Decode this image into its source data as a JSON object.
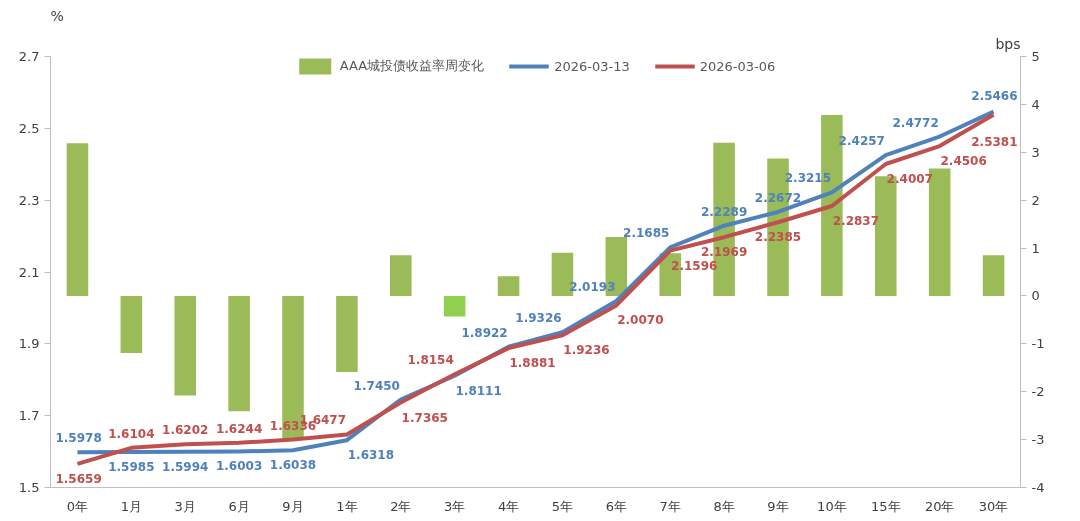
{
  "chart_data": {
    "type": "line",
    "ylabel": "%",
    "y2label": "bps",
    "categories": [
      "0年",
      "1月",
      "3月",
      "6月",
      "9月",
      "1年",
      "2年",
      "3年",
      "4年",
      "5年",
      "6年",
      "7年",
      "8年",
      "9年",
      "10年",
      "15年",
      "20年",
      "30年"
    ],
    "series": [
      {
        "name": "AAA城投债收益率周变化",
        "type": "bar",
        "axis": "y2",
        "color": "#9bbb59",
        "colors": [
          "#9bbb59",
          "#9bbb59",
          "#9bbb59",
          "#9bbb59",
          "#9bbb59",
          "#9bbb59",
          "#9bbb59",
          "#92d050",
          "#9bbb59",
          "#9bbb59",
          "#9bbb59",
          "#9bbb59",
          "#9bbb59",
          "#9bbb59",
          "#9bbb59",
          "#9bbb59",
          "#9bbb59",
          "#9bbb59"
        ],
        "values": [
          3.19,
          -1.19,
          -2.08,
          -2.41,
          -2.98,
          -1.59,
          0.85,
          -0.43,
          0.41,
          0.9,
          1.23,
          0.89,
          3.2,
          2.87,
          3.78,
          2.5,
          2.66,
          0.85
        ]
      },
      {
        "name": "2026-03-13",
        "color": "#4f81bd",
        "values": [
          1.5978,
          1.5985,
          1.5994,
          1.6003,
          1.6038,
          1.6318,
          1.745,
          1.8111,
          1.8922,
          1.9326,
          2.0193,
          2.1685,
          2.2289,
          2.2672,
          2.3215,
          2.4257,
          2.4772,
          2.5466
        ],
        "value_labels": [
          "1.5978",
          "1.5985",
          "1.5994",
          "1.6003",
          "1.6038",
          "1.6318",
          "1.7450",
          "1.8111",
          "1.8922",
          "1.9326",
          "2.0193",
          "2.1685",
          "2.2289",
          "2.2672",
          "2.3215",
          "2.4257",
          "2.4772",
          "2.5466"
        ]
      },
      {
        "name": "2026-03-06",
        "color": "#c0504d",
        "values": [
          1.5659,
          1.6104,
          1.6202,
          1.6244,
          1.6336,
          1.6477,
          1.7365,
          1.8154,
          1.8881,
          1.9236,
          2.007,
          2.1596,
          2.1969,
          2.2385,
          2.2837,
          2.4007,
          2.4506,
          2.5381
        ],
        "value_labels": [
          "1.5659",
          "1.6104",
          "1.6202",
          "1.6244",
          "1.6336",
          "1.6477",
          "1.7365",
          "1.8154",
          "1.8881",
          "1.9236",
          "2.0070",
          "2.1596",
          "2.1969",
          "2.2385",
          "2.2837",
          "2.4007",
          "2.4506",
          "2.5381"
        ]
      }
    ],
    "ylim": [
      1.5,
      2.7
    ],
    "yticks": [
      1.5,
      1.7,
      1.9,
      2.1,
      2.3,
      2.5,
      2.7
    ],
    "y2lim": [
      -4,
      5
    ],
    "y2ticks": [
      -4,
      -3,
      -2,
      -1,
      0,
      1,
      2,
      3,
      4,
      5
    ],
    "legend": "top",
    "grid": false
  }
}
